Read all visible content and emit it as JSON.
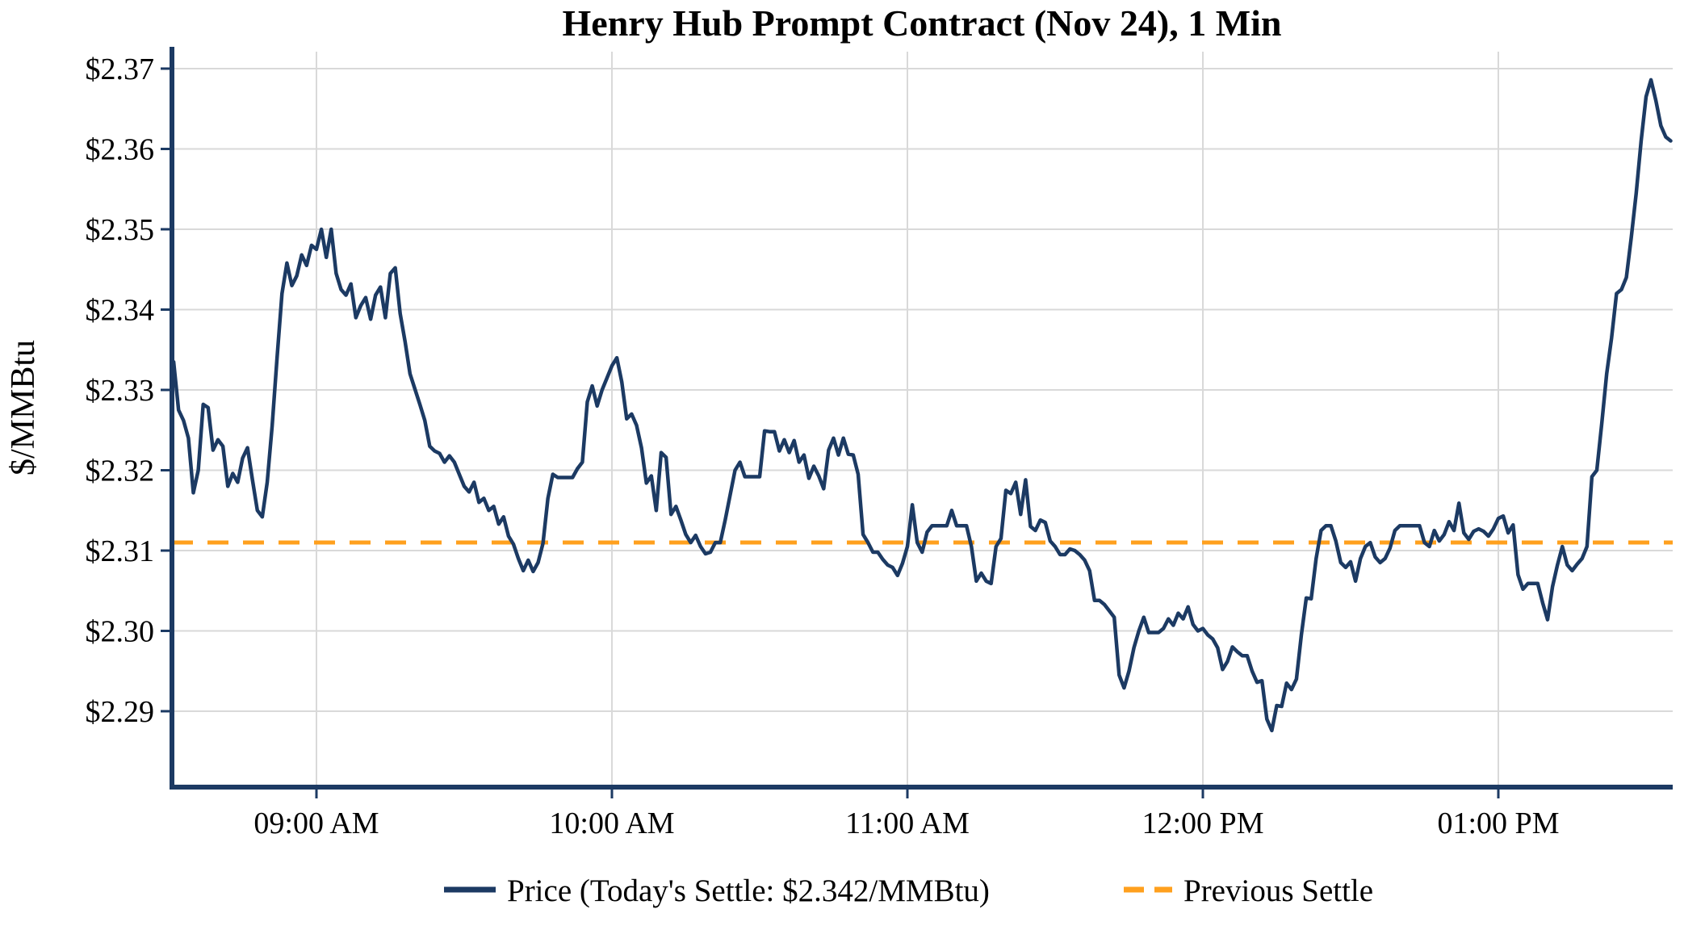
{
  "chart_data": {
    "type": "line",
    "title": "Henry Hub Prompt Contract (Nov 24), 1 Min",
    "ylabel": "$/MMBtu",
    "grid": true,
    "legend_position": "bottom-center",
    "colors": {
      "price": "#1C3A63",
      "previous_settle": "#FFA01E",
      "gridline": "#D9D9D9",
      "text": "#000000"
    },
    "today_settle": 2.342,
    "previous_settle": 2.311,
    "y_axis": {
      "min": 2.29,
      "max": 2.37,
      "tick_values": [
        2.29,
        2.3,
        2.31,
        2.32,
        2.33,
        2.34,
        2.35,
        2.36,
        2.37
      ],
      "tick_labels": [
        "$2.29",
        "$2.30",
        "$2.31",
        "$2.32",
        "$2.33",
        "$2.34",
        "$2.35",
        "$2.36",
        "$2.37"
      ]
    },
    "x_axis": {
      "start_minute": 511,
      "end_minute": 815,
      "tick_minutes": [
        540,
        600,
        660,
        720,
        780
      ],
      "tick_labels": [
        "09:00 AM",
        "10:00 AM",
        "11:00 AM",
        "12:00 PM",
        "01:00 PM"
      ]
    },
    "series": [
      {
        "name": "Price (Today's Settle: $2.342/MMBtu)",
        "style": "solid",
        "color": "#1C3A63",
        "start_minute": 511,
        "interval_minutes": 1,
        "values": [
          2.3335,
          2.3275,
          2.3262,
          2.324,
          2.3172,
          2.32,
          2.3282,
          2.3278,
          2.3225,
          2.3238,
          2.323,
          2.318,
          2.3196,
          2.3185,
          2.3215,
          2.3228,
          2.3188,
          2.315,
          2.3142,
          2.3185,
          2.3255,
          2.334,
          2.342,
          2.3458,
          2.343,
          2.3442,
          2.3468,
          2.3455,
          2.348,
          2.3475,
          2.35,
          2.3465,
          2.35,
          2.3445,
          2.3425,
          2.3418,
          2.3432,
          2.339,
          2.3405,
          2.3415,
          2.3388,
          2.3418,
          2.3428,
          2.339,
          2.3445,
          2.3452,
          2.3395,
          2.336,
          2.332,
          2.3301,
          2.3282,
          2.3262,
          2.323,
          2.3224,
          2.3221,
          2.321,
          2.3218,
          2.321,
          2.3195,
          2.318,
          2.3173,
          2.3185,
          2.316,
          2.3165,
          2.315,
          2.3155,
          2.3133,
          2.3142,
          2.3118,
          2.3108,
          2.309,
          2.3075,
          2.3088,
          2.3074,
          2.3085,
          2.3109,
          2.3165,
          2.3195,
          2.3191,
          2.3191,
          2.3191,
          2.3191,
          2.3202,
          2.321,
          2.3285,
          2.3305,
          2.328,
          2.33,
          2.3315,
          2.333,
          2.334,
          2.331,
          2.3264,
          2.327,
          2.3256,
          2.3228,
          2.3184,
          2.3193,
          2.315,
          2.3222,
          2.3216,
          2.3145,
          2.3155,
          2.3138,
          2.312,
          2.311,
          2.3119,
          2.3105,
          2.3096,
          2.3098,
          2.311,
          2.311,
          2.3138,
          2.3169,
          2.32,
          2.321,
          2.3192,
          2.3192,
          2.3192,
          2.3192,
          2.3249,
          2.3248,
          2.3248,
          2.3224,
          2.3238,
          2.3222,
          2.3237,
          2.321,
          2.3219,
          2.319,
          2.3205,
          2.3193,
          2.3177,
          2.3225,
          2.324,
          2.3219,
          2.324,
          2.322,
          2.3219,
          2.3195,
          2.312,
          2.311,
          2.3098,
          2.3098,
          2.3089,
          2.3082,
          2.3079,
          2.3069,
          2.3084,
          2.3105,
          2.3157,
          2.311,
          2.3098,
          2.3123,
          2.3131,
          2.3131,
          2.3131,
          2.3131,
          2.315,
          2.3131,
          2.3131,
          2.3131,
          2.3105,
          2.3062,
          2.3072,
          2.3062,
          2.3059,
          2.3105,
          2.3115,
          2.3175,
          2.3171,
          2.3185,
          2.3145,
          2.3188,
          2.313,
          2.3125,
          2.3138,
          2.3135,
          2.3112,
          2.3105,
          2.3095,
          2.3095,
          2.3102,
          2.31,
          2.3095,
          2.3088,
          2.3075,
          2.3038,
          2.3038,
          2.3033,
          2.3025,
          2.3017,
          2.2945,
          2.2929,
          2.295,
          2.2979,
          2.3,
          2.3017,
          2.2998,
          2.2998,
          2.2998,
          2.3003,
          2.3015,
          2.3007,
          2.3022,
          2.3015,
          2.303,
          2.3008,
          2.3,
          2.3003,
          2.2995,
          2.299,
          2.2979,
          2.2952,
          2.2962,
          2.298,
          2.2974,
          2.2969,
          2.2969,
          2.295,
          2.2936,
          2.2938,
          2.289,
          2.2876,
          2.2907,
          2.2906,
          2.2935,
          2.2927,
          2.294,
          2.2995,
          2.3041,
          2.304,
          2.309,
          2.3125,
          2.3131,
          2.3131,
          2.3112,
          2.3085,
          2.3079,
          2.3086,
          2.3062,
          2.309,
          2.3105,
          2.311,
          2.3092,
          2.3085,
          2.309,
          2.3103,
          2.3125,
          2.3131,
          2.3131,
          2.3131,
          2.3131,
          2.3131,
          2.311,
          2.3105,
          2.3125,
          2.3112,
          2.312,
          2.3136,
          2.3125,
          2.3159,
          2.3122,
          2.3114,
          2.3124,
          2.3127,
          2.3124,
          2.3118,
          2.3127,
          2.314,
          2.3143,
          2.3122,
          2.3132,
          2.307,
          2.3052,
          2.3059,
          2.3059,
          2.3059,
          2.3035,
          2.3014,
          2.3055,
          2.3082,
          2.3105,
          2.3082,
          2.3075,
          2.3083,
          2.309,
          2.3105,
          2.3192,
          2.32,
          2.3258,
          2.332,
          2.3365,
          2.342,
          2.3425,
          2.344,
          2.349,
          2.3545,
          2.361,
          2.3665,
          2.3686,
          2.366,
          2.3629,
          2.3615,
          2.361
        ]
      },
      {
        "name": "Previous Settle",
        "style": "dashed",
        "color": "#FFA01E",
        "value": 2.311
      }
    ]
  }
}
